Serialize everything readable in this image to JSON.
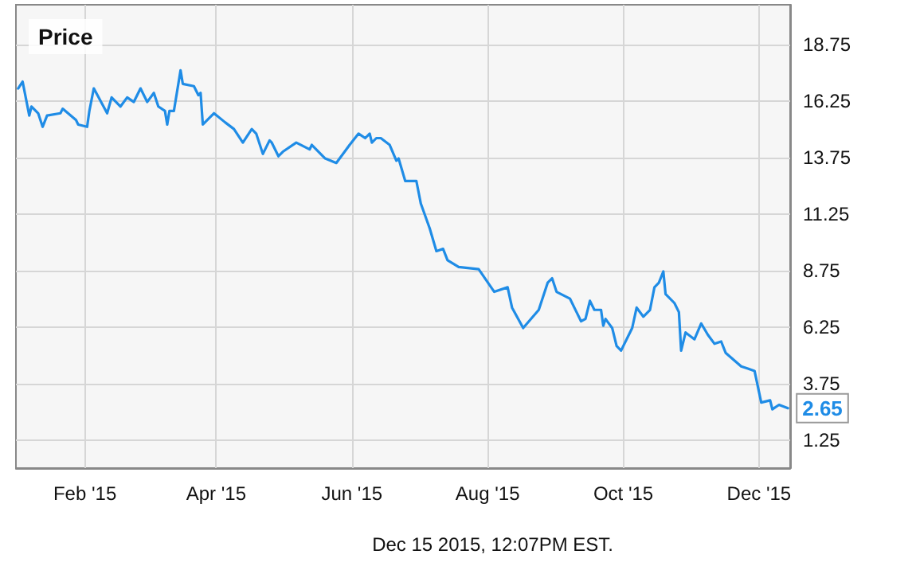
{
  "chart_data": {
    "type": "line",
    "title": "Price",
    "x": [
      "2015-01-02",
      "2015-01-04",
      "2015-01-07",
      "2015-01-08",
      "2015-01-11",
      "2015-01-13",
      "2015-01-15",
      "2015-01-21",
      "2015-01-22",
      "2015-01-28",
      "2015-01-29",
      "2015-02-02",
      "2015-02-03",
      "2015-02-05",
      "2015-02-11",
      "2015-02-13",
      "2015-02-17",
      "2015-02-20",
      "2015-02-23",
      "2015-02-26",
      "2015-03-01",
      "2015-03-04",
      "2015-03-06",
      "2015-03-09",
      "2015-03-10",
      "2015-03-11",
      "2015-03-13",
      "2015-03-16",
      "2015-03-17",
      "2015-03-22",
      "2015-03-24",
      "2015-03-25",
      "2015-03-26",
      "2015-03-31",
      "2015-04-05",
      "2015-04-09",
      "2015-04-13",
      "2015-04-17",
      "2015-04-19",
      "2015-04-22",
      "2015-04-25",
      "2015-04-26",
      "2015-04-29",
      "2015-05-01",
      "2015-05-07",
      "2015-05-13",
      "2015-05-14",
      "2015-05-20",
      "2015-05-25",
      "2015-05-31",
      "2015-06-04",
      "2015-06-07",
      "2015-06-09",
      "2015-06-10",
      "2015-06-12",
      "2015-06-14",
      "2015-06-18",
      "2015-06-21",
      "2015-06-22",
      "2015-06-25",
      "2015-06-30",
      "2015-07-02",
      "2015-07-06",
      "2015-07-09",
      "2015-07-12",
      "2015-07-14",
      "2015-07-19",
      "2015-07-28",
      "2015-08-04",
      "2015-08-10",
      "2015-08-12",
      "2015-08-17",
      "2015-08-24",
      "2015-08-28",
      "2015-08-30",
      "2015-09-01",
      "2015-09-07",
      "2015-09-10",
      "2015-09-12",
      "2015-09-14",
      "2015-09-16",
      "2015-09-18",
      "2015-09-21",
      "2015-09-22",
      "2015-09-23",
      "2015-09-26",
      "2015-09-28",
      "2015-09-30",
      "2015-10-05",
      "2015-10-07",
      "2015-10-10",
      "2015-10-13",
      "2015-10-15",
      "2015-10-17",
      "2015-10-19",
      "2015-10-20",
      "2015-10-24",
      "2015-10-26",
      "2015-10-27",
      "2015-10-29",
      "2015-11-02",
      "2015-11-05",
      "2015-11-08",
      "2015-11-11",
      "2015-11-14",
      "2015-11-16",
      "2015-11-23",
      "2015-11-26",
      "2015-11-29",
      "2015-12-02",
      "2015-12-06",
      "2015-12-07",
      "2015-12-10",
      "2015-12-14"
    ],
    "series": [
      {
        "color": "#1f8ce6",
        "values": [
          16.8,
          17.1,
          15.6,
          16.0,
          15.7,
          15.1,
          15.6,
          15.7,
          15.9,
          15.4,
          15.2,
          15.1,
          15.8,
          16.8,
          15.7,
          16.4,
          16.0,
          16.4,
          16.2,
          16.8,
          16.2,
          16.6,
          16.0,
          15.8,
          15.2,
          15.8,
          15.8,
          17.6,
          17.0,
          16.9,
          16.5,
          16.6,
          15.2,
          15.7,
          15.3,
          15.0,
          14.4,
          15.0,
          14.8,
          13.9,
          14.5,
          14.4,
          13.8,
          14.0,
          14.4,
          14.1,
          14.3,
          13.7,
          13.5,
          14.3,
          14.8,
          14.6,
          14.8,
          14.4,
          14.6,
          14.6,
          14.3,
          13.6,
          13.7,
          12.7,
          12.7,
          11.7,
          10.6,
          9.6,
          9.7,
          9.2,
          8.9,
          8.8,
          7.8,
          8.0,
          7.1,
          6.2,
          7.0,
          8.2,
          8.4,
          7.8,
          7.5,
          6.9,
          6.5,
          6.6,
          7.4,
          7.0,
          7.0,
          6.3,
          6.6,
          6.2,
          5.4,
          5.2,
          6.2,
          7.1,
          6.7,
          7.0,
          8.0,
          8.2,
          8.7,
          7.7,
          7.3,
          6.9,
          5.2,
          6.0,
          5.7,
          6.4,
          5.9,
          5.5,
          5.6,
          5.1,
          4.5,
          4.4,
          4.3,
          2.9,
          3.0,
          2.6,
          2.8,
          2.65
        ]
      }
    ],
    "xlim": [
      "2015-01-01",
      "2015-12-15"
    ],
    "xticks": [
      {
        "value": "2015-02-01",
        "label": "Feb '15"
      },
      {
        "value": "2015-04-01",
        "label": "Apr '15"
      },
      {
        "value": "2015-06-01",
        "label": "Jun '15"
      },
      {
        "value": "2015-08-01",
        "label": "Aug '15"
      },
      {
        "value": "2015-10-01",
        "label": "Oct '15"
      },
      {
        "value": "2015-12-01",
        "label": "Dec '15"
      }
    ],
    "ylim": [
      0,
      20.5
    ],
    "yticks": [
      1.25,
      3.75,
      6.25,
      8.75,
      11.25,
      13.75,
      16.25,
      18.75
    ],
    "grid": true,
    "marker": "none",
    "line_style": "solid",
    "annotations": [
      {
        "text": "2.65",
        "x": "2015-12-14",
        "y": 2.65
      },
      "Dec 15 2015, 12:07PM EST."
    ]
  }
}
